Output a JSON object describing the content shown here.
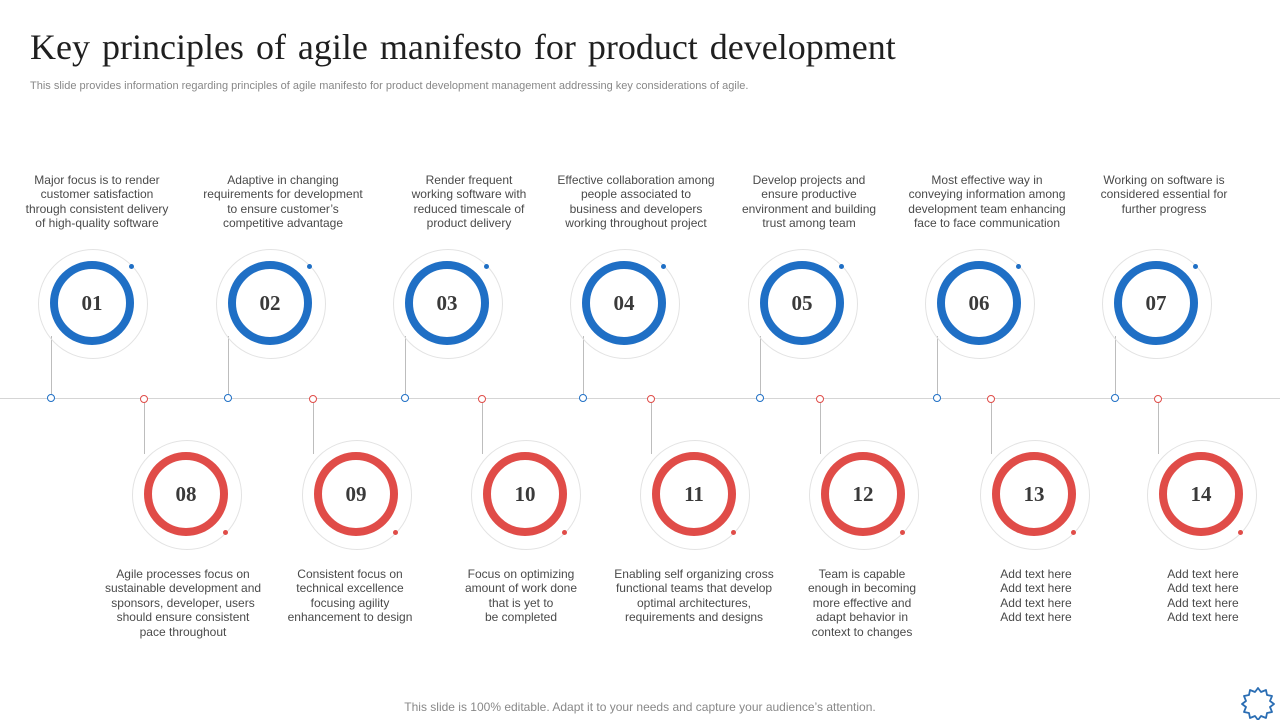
{
  "title": "Key principles of agile manifesto for product development",
  "subtitle": "This slide provides information regarding principles of agile manifesto for product development management addressing key considerations of agile.",
  "footer": "This slide is 100% editable. Adapt it to your needs and capture your audience’s attention.",
  "colors": {
    "blue": "#1f6fc5",
    "red": "#e04c48"
  },
  "top_principles": [
    {
      "number": "01",
      "text": "Major focus is to render\ncustomer satisfaction\nthrough consistent delivery\nof high-quality software"
    },
    {
      "number": "02",
      "text": "Adaptive in changing\nrequirements for development\nto ensure customer’s\ncompetitive advantage"
    },
    {
      "number": "03",
      "text": "Render frequent\nworking software with\nreduced timescale of\nproduct delivery"
    },
    {
      "number": "04",
      "text": "Effective collaboration among\npeople associated to\nbusiness and developers\nworking throughout project"
    },
    {
      "number": "05",
      "text": "Develop projects and\nensure productive\nenvironment and building\ntrust among team"
    },
    {
      "number": "06",
      "text": "Most effective way in\nconveying information among\ndevelopment team enhancing\nface to face communication"
    },
    {
      "number": "07",
      "text": "Working on software is\nconsidered essential for\nfurther progress"
    }
  ],
  "bottom_principles": [
    {
      "number": "08",
      "text": "Agile processes focus on\nsustainable development and\nsponsors, developer, users\nshould ensure consistent\npace throughout"
    },
    {
      "number": "09",
      "text": "Consistent focus on\ntechnical excellence\nfocusing agility\nenhancement to design"
    },
    {
      "number": "10",
      "text": "Focus on optimizing\namount of work done\nthat is yet to\nbe completed"
    },
    {
      "number": "11",
      "text": "Enabling self organizing cross\nfunctional teams that develop\noptimal architectures,\nrequirements and designs"
    },
    {
      "number": "12",
      "text": "Team is capable\nenough in becoming\nmore effective and\nadapt behavior in\ncontext to changes"
    },
    {
      "number": "13",
      "text": "Add text here\nAdd text here\nAdd text here\nAdd text here"
    },
    {
      "number": "14",
      "text": "Add text here\nAdd text here\nAdd text here\nAdd text here"
    }
  ]
}
